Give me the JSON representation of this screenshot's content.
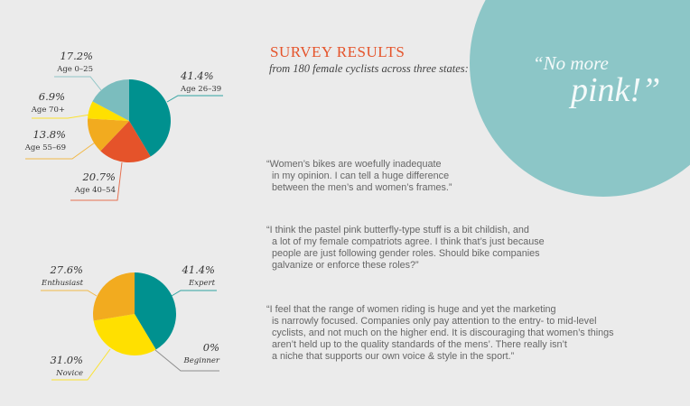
{
  "header": {
    "title": "SURVEY RESULTS",
    "subtitle": "from 180 female cyclists across three states:"
  },
  "callout": {
    "line1": "“No more",
    "line2": "pink!”",
    "color": "#8cc6c7"
  },
  "quotes": [
    "“Women’s bikes are woefully inadequate\n  in my opinion. I can tell a huge difference\n  between the men’s and women’s frames.”",
    "“I think the pastel pink butterfly-type stuff is a bit childish, and\n  a lot of my female compatriots agree. I think that’s just because\n  people are just following gender roles. Should bike companies\n  galvanize or enforce these roles?”",
    "“I feel that the range of women riding is huge and yet the marketing\n  is narrowly focused. Companies only pay attention to the entry- to mid-level\n  cyclists, and not much on the higher end. It is discouraging that women’s things\n  aren’t held up to the quality standards of the mens’. There really isn’t\n  a niche that supports our own voice & style in the sport.”"
  ],
  "chart_data": [
    {
      "type": "pie",
      "categories": [
        "Age 26–39",
        "Age 40–54",
        "Age 55–69",
        "Age 70+",
        "Age 0–25"
      ],
      "values": [
        41.4,
        20.7,
        13.8,
        6.9,
        17.2
      ],
      "labels": [
        "41.4%",
        "20.7%",
        "13.8%",
        "6.9%",
        "17.2%"
      ],
      "colors": [
        "#00918f",
        "#e5532a",
        "#f2ab1f",
        "#ffe000",
        "#7bbdbe"
      ],
      "start": "top, clockwise"
    },
    {
      "type": "pie",
      "categories": [
        "Expert",
        "Beginner",
        "Novice",
        "Enthusiast"
      ],
      "values": [
        41.4,
        0,
        31.0,
        27.6
      ],
      "labels": [
        "41.4%",
        "0%",
        "31.0%",
        "27.6%"
      ],
      "colors": [
        "#00918f",
        "#777777",
        "#ffe000",
        "#f2ab1f"
      ],
      "start": "top, clockwise"
    }
  ]
}
